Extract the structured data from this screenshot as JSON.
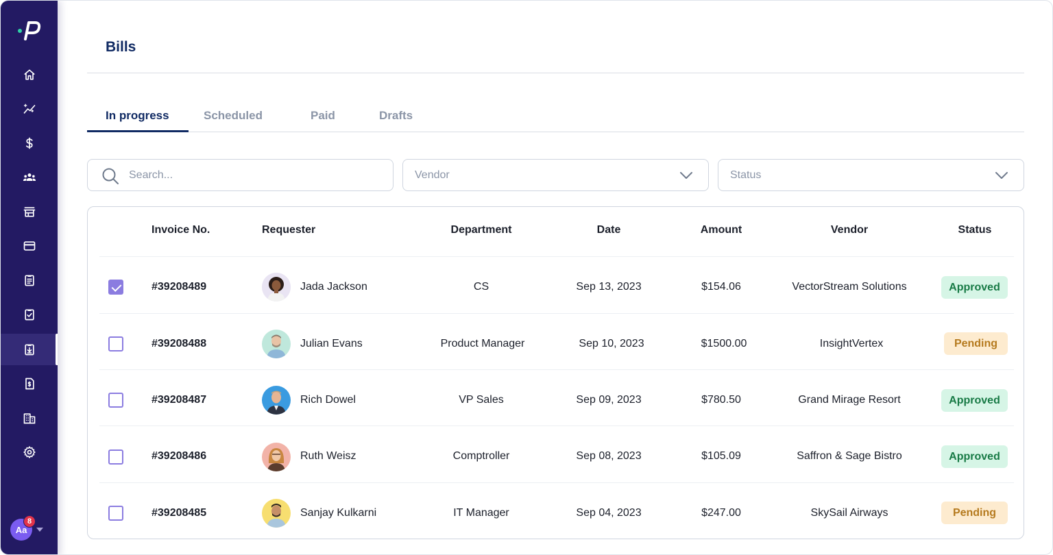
{
  "page": {
    "title": "Bills"
  },
  "sidebar": {
    "items": [
      {
        "name": "home-icon"
      },
      {
        "name": "insights-icon"
      },
      {
        "name": "dollar-icon"
      },
      {
        "name": "team-icon"
      },
      {
        "name": "store-icon"
      },
      {
        "name": "card-icon"
      },
      {
        "name": "clipboard-icon"
      },
      {
        "name": "clipboard-check-icon"
      },
      {
        "name": "bills-icon",
        "active": true
      },
      {
        "name": "invoice-icon"
      },
      {
        "name": "building-icon"
      },
      {
        "name": "gear-icon"
      }
    ],
    "user": {
      "initials": "Aa",
      "notifications": "8"
    }
  },
  "tabs": [
    {
      "label": "In progress",
      "active": true
    },
    {
      "label": "Scheduled"
    },
    {
      "label": "Paid"
    },
    {
      "label": "Drafts"
    }
  ],
  "filters": {
    "search_placeholder": "Search...",
    "vendor_placeholder": "Vendor",
    "status_placeholder": "Status"
  },
  "table": {
    "columns": {
      "invoice": "Invoice  No.",
      "requester": "Requester",
      "department": "Department",
      "date": "Date",
      "amount": "Amount",
      "vendor": "Vendor",
      "status": "Status"
    },
    "rows": [
      {
        "checked": true,
        "invoice": "#39208489",
        "requester": "Jada Jackson",
        "department": "CS",
        "date": "Sep 13, 2023",
        "amount": "$154.06",
        "vendor": "VectorStream Solutions",
        "status": "Approved"
      },
      {
        "checked": false,
        "invoice": "#39208488",
        "requester": "Julian Evans",
        "department": "Product Manager",
        "date": "Sep 10, 2023",
        "amount": "$1500.00",
        "vendor": "InsightVertex",
        "status": "Pending"
      },
      {
        "checked": false,
        "invoice": "#39208487",
        "requester": "Rich Dowel",
        "department": "VP Sales",
        "date": "Sep 09, 2023",
        "amount": "$780.50",
        "vendor": "Grand Mirage Resort",
        "status": "Approved"
      },
      {
        "checked": false,
        "invoice": "#39208486",
        "requester": "Ruth Weisz",
        "department": "Comptroller",
        "date": "Sep 08, 2023",
        "amount": "$105.09",
        "vendor": "Saffron & Sage Bistro",
        "status": "Approved"
      },
      {
        "checked": false,
        "invoice": "#39208485",
        "requester": "Sanjay Kulkarni",
        "department": "IT Manager",
        "date": "Sep 04, 2023",
        "amount": "$247.00",
        "vendor": "SkySail Airways",
        "status": "Pending"
      }
    ]
  },
  "colors": {
    "sidebar_bg": "#231a63",
    "accent": "#102a63",
    "checkbox": "#8b7ce0",
    "approved_bg": "#d6f5e6",
    "approved_text": "#177a45",
    "pending_bg": "#fdebcf",
    "pending_text": "#b57a1e"
  }
}
